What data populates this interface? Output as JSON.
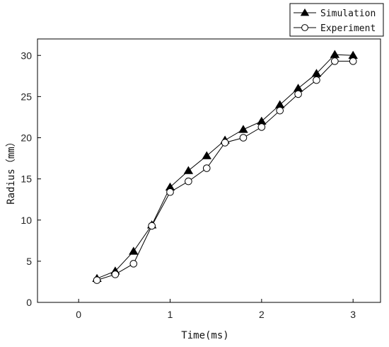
{
  "chart_data": {
    "type": "line",
    "xlabel": "Time(ms)",
    "ylabel": "Radius（mm）",
    "xlim": [
      -0.45,
      3.3
    ],
    "ylim": [
      0,
      32
    ],
    "xticks": [
      0,
      1,
      2,
      3
    ],
    "yticks": [
      0,
      5,
      10,
      15,
      20,
      25,
      30
    ],
    "grid": false,
    "legend_position": "top-right",
    "series": [
      {
        "name": "Simulation",
        "marker": "filled-triangle",
        "color": "#000000",
        "x": [
          0.2,
          0.4,
          0.6,
          0.8,
          1.0,
          1.2,
          1.4,
          1.6,
          1.8,
          2.0,
          2.2,
          2.4,
          2.6,
          2.8,
          3.0
        ],
        "y": [
          2.9,
          3.8,
          6.2,
          9.4,
          14.0,
          16.0,
          17.8,
          19.7,
          21.0,
          22.0,
          24.0,
          26.0,
          27.8,
          30.1,
          30.0
        ]
      },
      {
        "name": "Experiment",
        "marker": "hollow-circle",
        "color": "#000000",
        "x": [
          0.2,
          0.4,
          0.6,
          0.8,
          1.0,
          1.2,
          1.4,
          1.6,
          1.8,
          2.0,
          2.2,
          2.4,
          2.6,
          2.8,
          3.0
        ],
        "y": [
          2.7,
          3.4,
          4.7,
          9.3,
          13.4,
          14.7,
          16.3,
          19.4,
          20.0,
          21.3,
          23.3,
          25.3,
          27.0,
          29.3,
          29.3
        ]
      }
    ]
  }
}
